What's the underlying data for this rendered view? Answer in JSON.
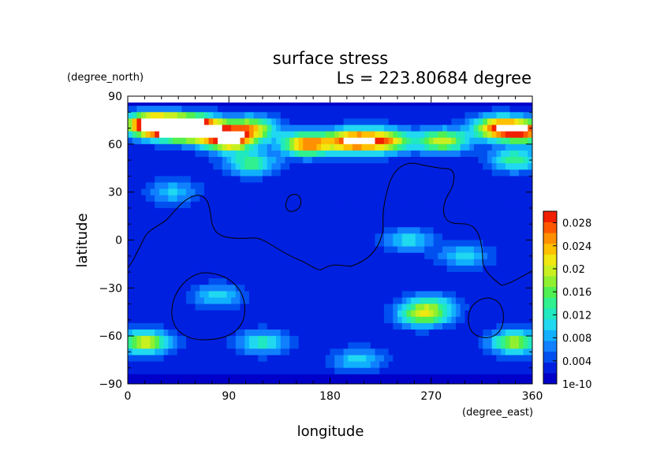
{
  "chart_data": {
    "type": "heatmap",
    "title": "surface stress",
    "subtitle": "Ls = 223.80684 degree",
    "xlabel": "longitude",
    "ylabel": "latitude",
    "x_unit": "(degree_east)",
    "y_unit": "(degree_north)",
    "xlim": [
      0,
      360
    ],
    "ylim": [
      -90,
      90
    ],
    "x_ticks": [
      "0",
      "90",
      "180",
      "270",
      "360"
    ],
    "y_ticks": [
      "90",
      "60",
      "30",
      "0",
      "−30",
      "−60",
      "−90"
    ],
    "colorbar": {
      "min": 0,
      "max": 0.03,
      "tick_labels": [
        "1e-10",
        "0.004",
        "0.008",
        "0.012",
        "0.016",
        "0.02",
        "0.024",
        "0.028"
      ],
      "colors": [
        "#0000c8",
        "#0020e0",
        "#0050f0",
        "#1080ff",
        "#10b0ff",
        "#20d8f0",
        "#20e8c0",
        "#30f090",
        "#50f050",
        "#90f030",
        "#c8f020",
        "#f0e810",
        "#ffc000",
        "#ff9000",
        "#ff5800",
        "#f02000"
      ]
    },
    "features": [
      {
        "lon": 20,
        "lat": 72,
        "value": 0.032
      },
      {
        "lon": 45,
        "lat": 70,
        "value": 0.032
      },
      {
        "lon": 65,
        "lat": 70,
        "value": 0.026
      },
      {
        "lon": 90,
        "lat": 63,
        "value": 0.028
      },
      {
        "lon": 110,
        "lat": 70,
        "value": 0.018
      },
      {
        "lon": 160,
        "lat": 60,
        "value": 0.024
      },
      {
        "lon": 200,
        "lat": 62,
        "value": 0.026
      },
      {
        "lon": 230,
        "lat": 62,
        "value": 0.02
      },
      {
        "lon": 280,
        "lat": 62,
        "value": 0.018
      },
      {
        "lon": 330,
        "lat": 70,
        "value": 0.024
      },
      {
        "lon": 355,
        "lat": 68,
        "value": 0.022
      },
      {
        "lon": 345,
        "lat": 50,
        "value": 0.012
      },
      {
        "lon": 110,
        "lat": 48,
        "value": 0.012
      },
      {
        "lon": 40,
        "lat": 30,
        "value": 0.007
      },
      {
        "lon": 250,
        "lat": 0,
        "value": 0.008
      },
      {
        "lon": 300,
        "lat": -10,
        "value": 0.008
      },
      {
        "lon": 270,
        "lat": -40,
        "value": 0.008
      },
      {
        "lon": 263,
        "lat": -47,
        "value": 0.016
      },
      {
        "lon": 80,
        "lat": -35,
        "value": 0.008
      },
      {
        "lon": 15,
        "lat": -64,
        "value": 0.018
      },
      {
        "lon": 345,
        "lat": -64,
        "value": 0.016
      },
      {
        "lon": 120,
        "lat": -64,
        "value": 0.01
      },
      {
        "lon": 205,
        "lat": -75,
        "value": 0.008
      }
    ]
  }
}
